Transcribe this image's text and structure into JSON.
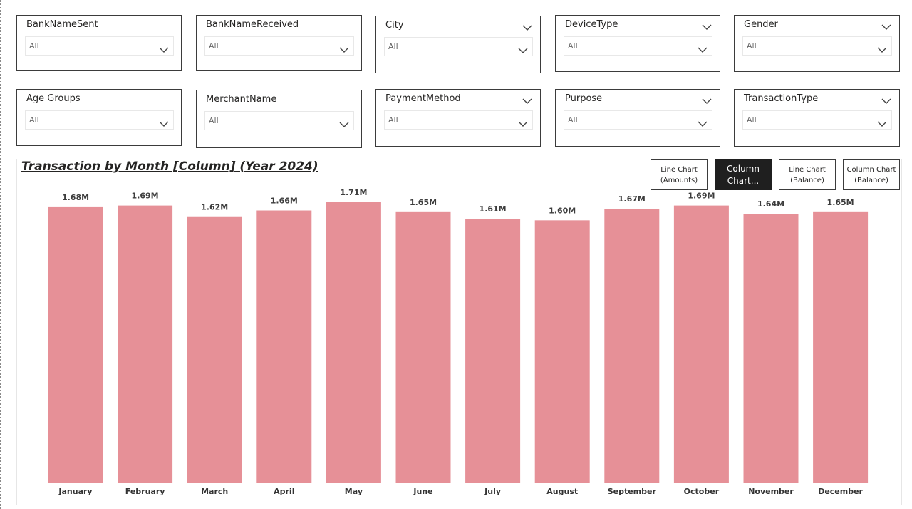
{
  "slicers_row1": [
    {
      "title": "BankNameSent",
      "value": "All",
      "header_chevron": false
    },
    {
      "title": "BankNameReceived",
      "value": "All",
      "header_chevron": false
    },
    {
      "title": "City",
      "value": "All",
      "header_chevron": true
    },
    {
      "title": "DeviceType",
      "value": "All",
      "header_chevron": true
    },
    {
      "title": "Gender",
      "value": "All",
      "header_chevron": true
    }
  ],
  "slicers_row2": [
    {
      "title": "Age Groups",
      "value": "All",
      "header_chevron": false
    },
    {
      "title": "MerchantName",
      "value": "All",
      "header_chevron": false
    },
    {
      "title": "PaymentMethod",
      "value": "All",
      "header_chevron": true
    },
    {
      "title": "Purpose",
      "value": "All",
      "header_chevron": true
    },
    {
      "title": "TransactionType",
      "value": "All",
      "header_chevron": true
    }
  ],
  "chart_title": "Transaction by Month [Column] (Year 2024)",
  "buttons": {
    "line_amounts": "Line Chart\n(Amounts)",
    "column_chart": "Column\nChart...",
    "line_balance": "Line Chart\n(Balance)",
    "column_balance": "Column Chart\n(Balance)"
  },
  "colors": {
    "bar": "#e69097",
    "active_button": "#1f1f1f"
  },
  "chart_data": {
    "type": "bar",
    "title": "Transaction by Month [Column] (Year 2024)",
    "categories": [
      "January",
      "February",
      "March",
      "April",
      "May",
      "June",
      "July",
      "August",
      "September",
      "October",
      "November",
      "December"
    ],
    "values": [
      1.68,
      1.69,
      1.62,
      1.66,
      1.71,
      1.65,
      1.61,
      1.6,
      1.67,
      1.69,
      1.64,
      1.65
    ],
    "labels": [
      "1.68M",
      "1.69M",
      "1.62M",
      "1.66M",
      "1.71M",
      "1.65M",
      "1.61M",
      "1.60M",
      "1.67M",
      "1.69M",
      "1.64M",
      "1.65M"
    ],
    "unit": "M",
    "ylim": [
      0,
      1.71
    ],
    "xlabel": "",
    "ylabel": "",
    "grid": false,
    "legend": "none"
  }
}
